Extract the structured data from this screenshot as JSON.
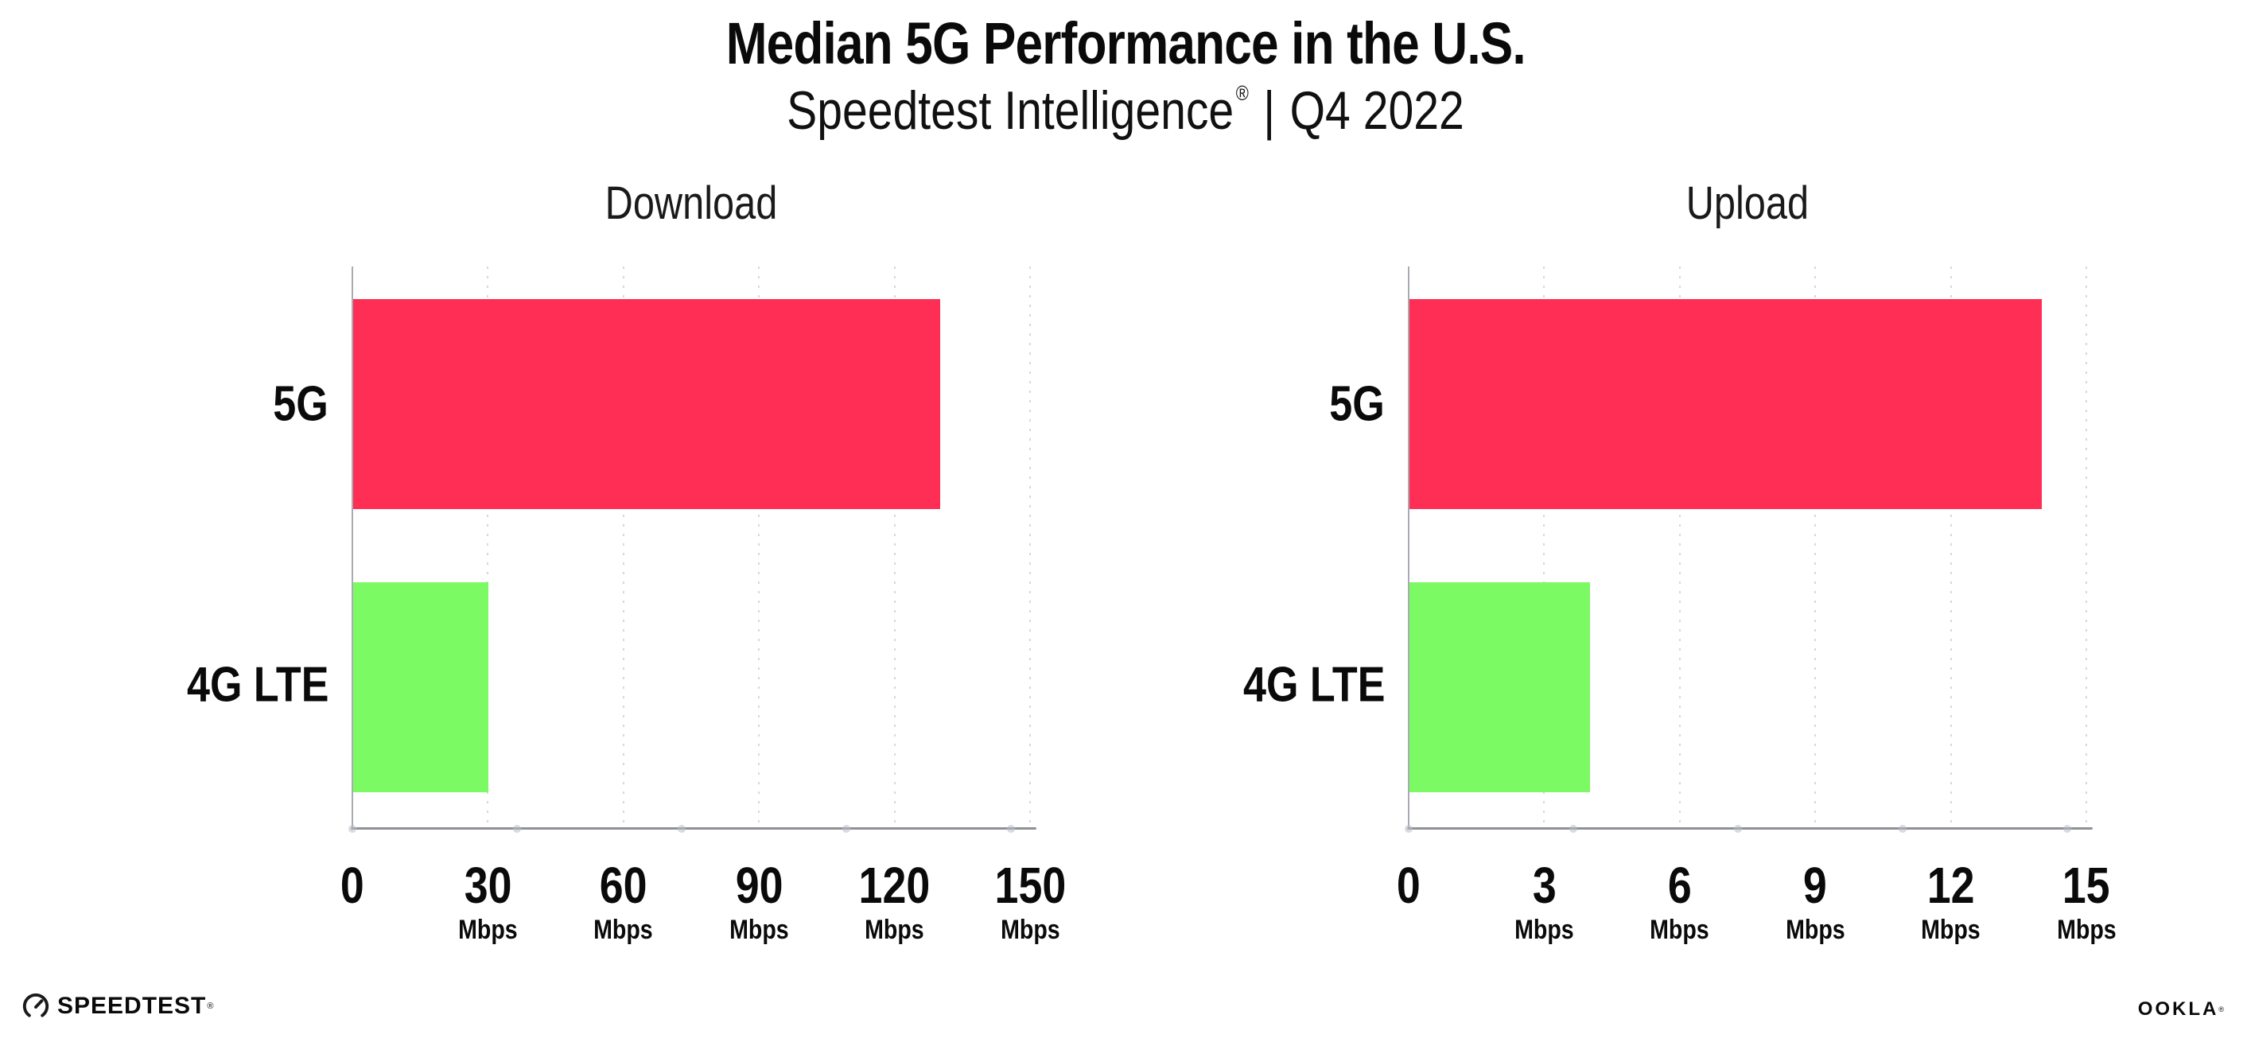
{
  "header": {
    "title": "Median 5G Performance in the U.S.",
    "subtitle": {
      "brand": "Speedtest Intelligence",
      "mark": "®",
      "separator": "|",
      "period": "Q4 2022"
    }
  },
  "chart_data": [
    {
      "type": "bar",
      "orientation": "horizontal",
      "title": "Download",
      "categories": [
        "5G",
        "4G LTE"
      ],
      "values": [
        130,
        30
      ],
      "unit": "Mbps",
      "xlim": [
        0,
        150
      ],
      "xticks": [
        0,
        30,
        60,
        90,
        120,
        150
      ],
      "colors": [
        "#FF2E55",
        "#7CFA64"
      ],
      "grid": "dotted-vertical"
    },
    {
      "type": "bar",
      "orientation": "horizontal",
      "title": "Upload",
      "categories": [
        "5G",
        "4G LTE"
      ],
      "values": [
        14,
        4
      ],
      "unit": "Mbps",
      "xlim": [
        0,
        15
      ],
      "xticks": [
        0,
        3,
        6,
        9,
        12,
        15
      ],
      "colors": [
        "#FF2E55",
        "#7CFA64"
      ],
      "grid": "dotted-vertical"
    }
  ],
  "footer": {
    "speedtest": {
      "label": "SPEEDTEST",
      "mark": "®"
    },
    "ookla": {
      "label": "OOKLA",
      "mark": "®"
    }
  },
  "colors": {
    "bar_5g": "#FF2E55",
    "bar_4g_lte": "#7CFA64",
    "axis": "#a9abb2",
    "baseline": "#8f9197",
    "gridline_dot": "#d6d8e0",
    "text": "#0a0a0a"
  }
}
